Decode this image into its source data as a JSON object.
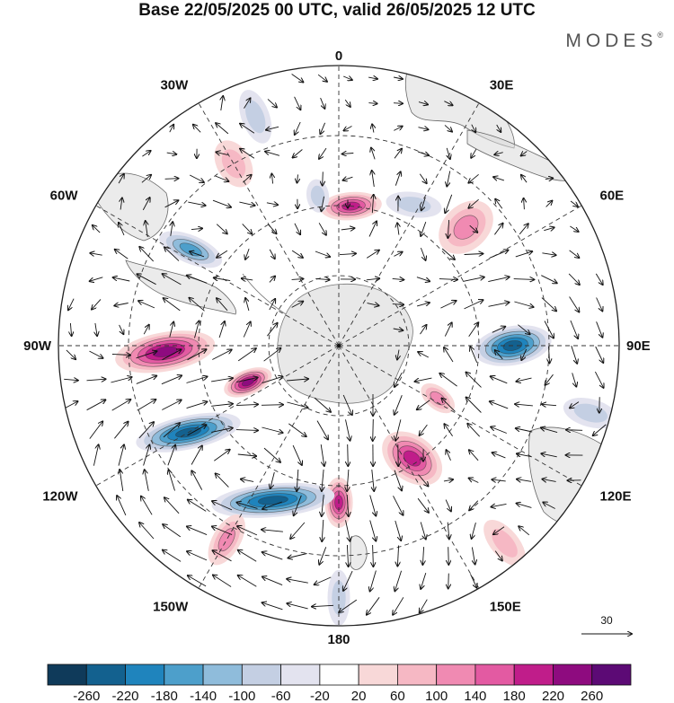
{
  "title": "Base 22/05/2025 00 UTC, valid 26/05/2025 12 UTC",
  "brand": "MODES",
  "brand_mark": "®",
  "longitude_labels": [
    "0",
    "30E",
    "60E",
    "90E",
    "120E",
    "150E",
    "180",
    "150W",
    "120W",
    "90W",
    "60W",
    "30W"
  ],
  "reference_vector": {
    "label": "30"
  },
  "colorbar": {
    "ticks": [
      "-260",
      "-220",
      "-180",
      "-140",
      "-100",
      "-60",
      "-20",
      "20",
      "60",
      "100",
      "140",
      "180",
      "220",
      "260"
    ],
    "colors": [
      "#0f3a5a",
      "#13618f",
      "#1f84bd",
      "#4d9fcb",
      "#8fbcdb",
      "#c4cfe3",
      "#e3e3ef",
      "#ffffff",
      "#f8d8d8",
      "#f6b8c4",
      "#f08ab2",
      "#e35aa2",
      "#c01d8a",
      "#8e0b7f",
      "#5c0a75"
    ]
  },
  "anomalies": [
    {
      "lon": 180,
      "r": 0.56,
      "a": 0.09,
      "b": 0.05,
      "rot": 0,
      "level": "pos-strong"
    },
    {
      "lon": 248,
      "r": 0.35,
      "a": 0.09,
      "b": 0.045,
      "rot": 0,
      "level": "pos-extreme"
    },
    {
      "lon": 268,
      "r": 0.62,
      "a": 0.18,
      "b": 0.07,
      "rot": -8,
      "level": "pos-extreme"
    },
    {
      "lon": 240,
      "r": 0.62,
      "a": 0.19,
      "b": 0.06,
      "rot": 18,
      "level": "neg-strong"
    },
    {
      "lon": 203,
      "r": 0.6,
      "a": 0.22,
      "b": 0.06,
      "rot": 62,
      "level": "neg-strong"
    },
    {
      "lon": 147,
      "r": 0.48,
      "a": 0.12,
      "b": 0.08,
      "rot": -20,
      "level": "pos-strong"
    },
    {
      "lon": 118,
      "r": 0.4,
      "a": 0.07,
      "b": 0.04,
      "rot": 10,
      "level": "pos-mid"
    },
    {
      "lon": 90,
      "r": 0.62,
      "a": 0.14,
      "b": 0.07,
      "rot": -10,
      "level": "neg-strong"
    },
    {
      "lon": 47,
      "r": 0.62,
      "a": 0.11,
      "b": 0.08,
      "rot": 0,
      "level": "pos-mid"
    },
    {
      "lon": 5,
      "r": 0.5,
      "a": 0.11,
      "b": 0.05,
      "rot": 80,
      "level": "pos-strong"
    },
    {
      "lon": 352,
      "r": 0.54,
      "a": 0.06,
      "b": 0.04,
      "rot": 0,
      "level": "neg-weak"
    },
    {
      "lon": 28,
      "r": 0.57,
      "a": 0.1,
      "b": 0.045,
      "rot": 70,
      "level": "neg-weak"
    },
    {
      "lon": 303,
      "r": 0.63,
      "a": 0.12,
      "b": 0.05,
      "rot": -10,
      "level": "neg-mid"
    },
    {
      "lon": 330,
      "r": 0.75,
      "a": 0.09,
      "b": 0.06,
      "rot": 0,
      "level": "pos-weak"
    },
    {
      "lon": 210,
      "r": 0.8,
      "a": 0.1,
      "b": 0.05,
      "rot": 0,
      "level": "pos-mid"
    },
    {
      "lon": 180,
      "r": 0.9,
      "a": 0.1,
      "b": 0.04,
      "rot": 0,
      "level": "neg-weak"
    },
    {
      "lon": 340,
      "r": 0.87,
      "a": 0.1,
      "b": 0.05,
      "rot": 0,
      "level": "neg-weak"
    },
    {
      "lon": 105,
      "r": 0.93,
      "a": 0.1,
      "b": 0.05,
      "rot": 0,
      "level": "neg-weak"
    },
    {
      "lon": 140,
      "r": 0.92,
      "a": 0.1,
      "b": 0.05,
      "rot": 0,
      "level": "pos-weak"
    }
  ]
}
